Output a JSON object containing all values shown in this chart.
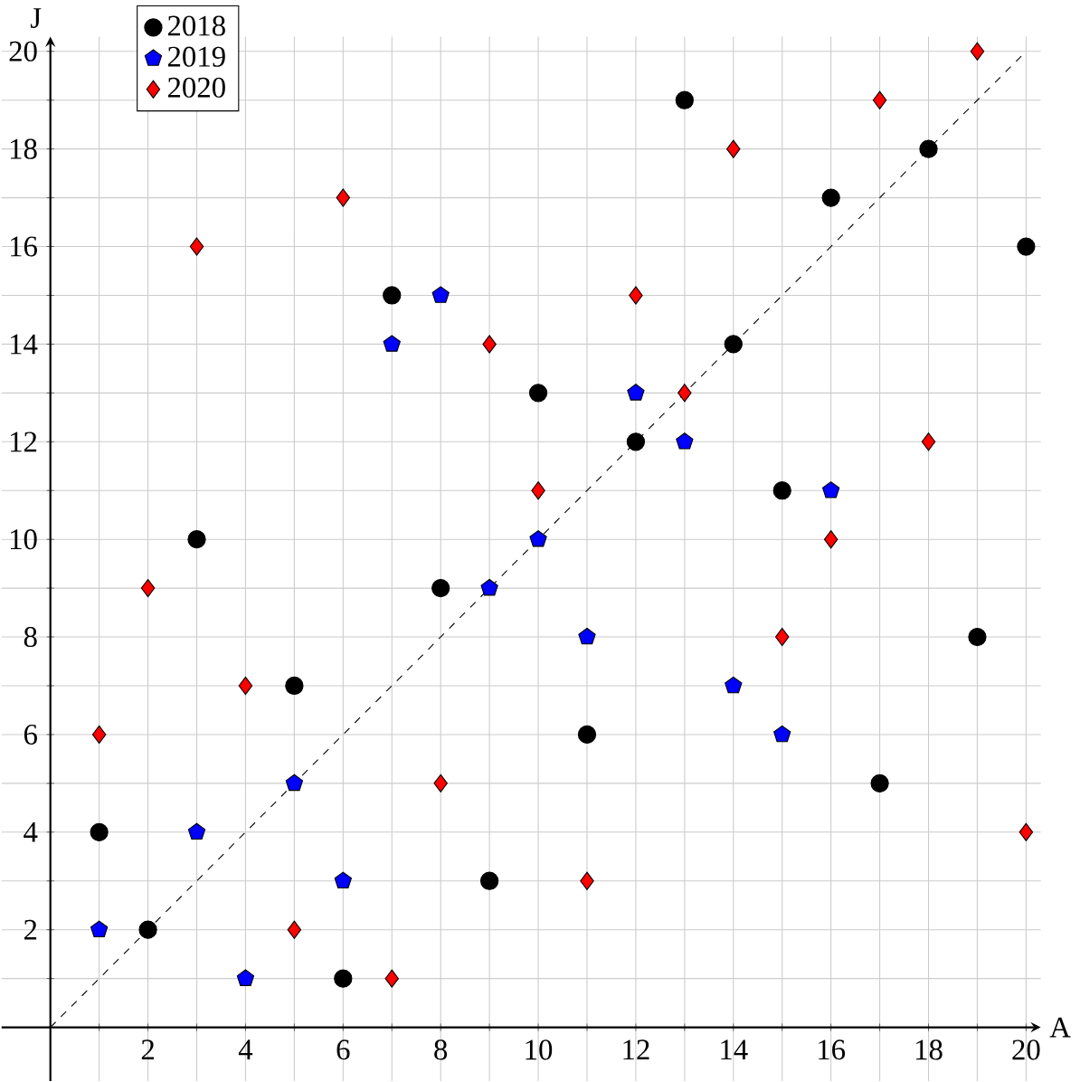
{
  "chart_data": {
    "type": "scatter",
    "xlabel": "A",
    "ylabel": "J",
    "xlim": [
      -1,
      20.3
    ],
    "ylim": [
      -1.1,
      20.3
    ],
    "xticks": [
      {
        "value": 1,
        "label": null
      },
      2,
      {
        "value": 3,
        "label": null
      },
      4,
      {
        "value": 5,
        "label": null
      },
      6,
      {
        "value": 7,
        "label": null
      },
      8,
      {
        "value": 9,
        "label": null
      },
      10,
      {
        "value": 11,
        "label": null
      },
      12,
      {
        "value": 13,
        "label": null
      },
      14,
      {
        "value": 15,
        "label": null
      },
      16,
      {
        "value": 17,
        "label": null
      },
      18,
      {
        "value": 19,
        "label": null
      },
      20
    ],
    "yticks": [
      {
        "value": 1,
        "label": null
      },
      2,
      {
        "value": 3,
        "label": null
      },
      4,
      {
        "value": 5,
        "label": null
      },
      6,
      {
        "value": 7,
        "label": null
      },
      8,
      {
        "value": 9,
        "label": null
      },
      10,
      {
        "value": 11,
        "label": null
      },
      12,
      {
        "value": 13,
        "label": null
      },
      14,
      {
        "value": 15,
        "label": null
      },
      16,
      {
        "value": 17,
        "label": null
      },
      18,
      {
        "value": 19,
        "label": null
      },
      20
    ],
    "grid": true,
    "legend": "top left",
    "series": [
      {
        "name": "2018",
        "color": "#000000",
        "marker": "circle",
        "x": [
          1,
          2,
          3,
          5,
          6,
          7,
          8,
          9,
          10,
          11,
          12,
          13,
          14,
          15,
          16,
          17,
          18,
          19,
          20
        ],
        "values": [
          4,
          2,
          10,
          7,
          1,
          15,
          9,
          3,
          13,
          6,
          12,
          19,
          14,
          11,
          17,
          5,
          18,
          8,
          16
        ]
      },
      {
        "name": "2019",
        "color": "#0000ff",
        "x": [
          1,
          3,
          4,
          5,
          6,
          7,
          8,
          9,
          10,
          11,
          12,
          13,
          14,
          15,
          16
        ],
        "values": [
          2,
          4,
          1,
          5,
          3,
          14,
          15,
          9,
          10,
          8,
          13,
          12,
          7,
          6,
          11
        ]
      },
      {
        "name": "2020",
        "color": "#ff0000",
        "marker": "diamond",
        "x": [
          1,
          2,
          3,
          4,
          5,
          6,
          7,
          8,
          9,
          10,
          11,
          12,
          13,
          14,
          15,
          16,
          17,
          18,
          19,
          20
        ],
        "values": [
          6,
          9,
          16,
          7,
          2,
          17,
          1,
          5,
          14,
          11,
          3,
          15,
          13,
          18,
          8,
          10,
          19,
          12,
          20,
          4
        ]
      },
      {
        "type": "line",
        "color": "#000000",
        "line_style": "dashed",
        "marker": "none",
        "x": [
          0,
          20
        ],
        "values": [
          0,
          20
        ]
      }
    ]
  }
}
